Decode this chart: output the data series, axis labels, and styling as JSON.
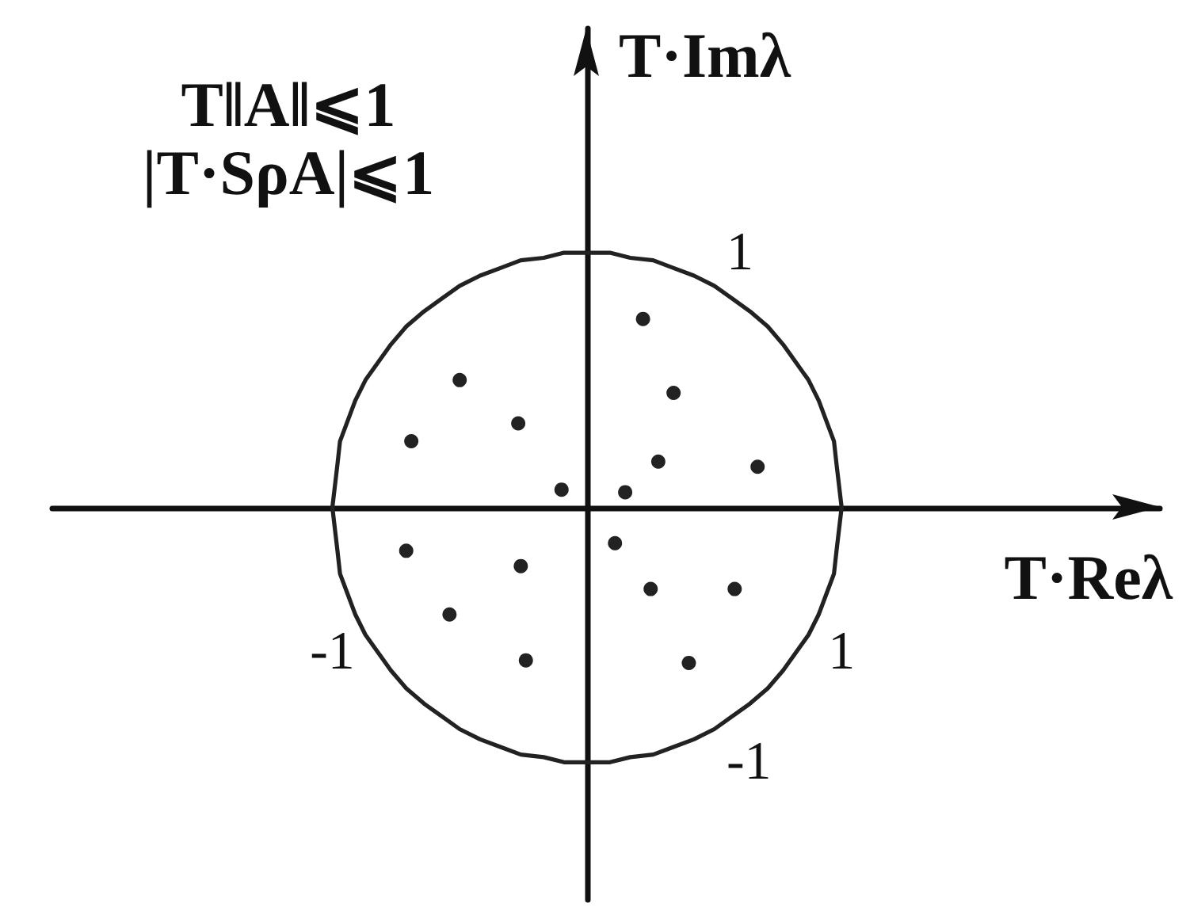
{
  "chart_data": {
    "type": "scatter",
    "xlabel": "T·Reλ",
    "ylabel": "T·Imλ",
    "annotations": [
      "T‖A‖⩽1",
      "|T·SρA|⩽1"
    ],
    "xlim": [
      -2.1,
      2.25
    ],
    "ylim": [
      -1.54,
      1.88
    ],
    "xticks": [
      -1,
      1
    ],
    "yticks": [
      -1,
      1
    ],
    "grid": false,
    "series": [
      {
        "type": "line",
        "color": "#222222",
        "marker": "none",
        "x": [
          -1,
          -0.98,
          -0.97,
          -0.94,
          -0.91,
          -0.87,
          -0.82,
          -0.77,
          -0.71,
          -0.64,
          -0.57,
          -0.5,
          -0.42,
          -0.34,
          -0.26,
          -0.17,
          -0.09,
          0,
          0.09,
          0.17,
          0.26,
          0.34,
          0.42,
          0.5,
          0.57,
          0.64,
          0.71,
          0.77,
          0.82,
          0.87,
          0.91,
          0.94,
          0.97,
          0.98,
          1
        ],
        "values": [
          0,
          0.17,
          0.26,
          0.34,
          0.42,
          0.5,
          0.57,
          0.64,
          0.71,
          0.77,
          0.82,
          0.87,
          0.91,
          0.94,
          0.97,
          0.98,
          1,
          1,
          1,
          0.98,
          0.97,
          0.94,
          0.91,
          0.87,
          0.82,
          0.77,
          0.71,
          0.64,
          0.57,
          0.5,
          0.42,
          0.34,
          0.26,
          0.17,
          0
        ]
      },
      {
        "type": "line",
        "color": "#222222",
        "marker": "none",
        "x": [
          -1,
          -0.98,
          -0.97,
          -0.94,
          -0.91,
          -0.87,
          -0.82,
          -0.77,
          -0.71,
          -0.64,
          -0.57,
          -0.5,
          -0.42,
          -0.34,
          -0.26,
          -0.17,
          -0.09,
          0,
          0.09,
          0.17,
          0.26,
          0.34,
          0.42,
          0.5,
          0.57,
          0.64,
          0.71,
          0.77,
          0.82,
          0.87,
          0.91,
          0.94,
          0.97,
          0.98,
          1
        ],
        "values": [
          0,
          -0.17,
          -0.26,
          -0.34,
          -0.42,
          -0.5,
          -0.57,
          -0.64,
          -0.71,
          -0.77,
          -0.82,
          -0.87,
          -0.91,
          -0.94,
          -0.97,
          -0.98,
          -1,
          -1,
          -1,
          -0.98,
          -0.97,
          -0.94,
          -0.91,
          -0.87,
          -0.82,
          -0.77,
          -0.71,
          -0.64,
          -0.57,
          -0.5,
          -0.42,
          -0.34,
          -0.26,
          -0.17,
          0
        ]
      },
      {
        "type": "scatter",
        "color": "#222222",
        "marker": "circle",
        "x": [
          0.22,
          -0.5,
          0.34,
          -0.27,
          -0.69,
          0.28,
          0.67,
          -0.1,
          0.15,
          0.11,
          -0.71,
          -0.26,
          0.25,
          0.58,
          -0.54,
          -0.24,
          0.4
        ],
        "values": [
          0.74,
          0.5,
          0.45,
          0.33,
          0.26,
          0.18,
          0.16,
          0.07,
          0.06,
          -0.14,
          -0.17,
          -0.23,
          -0.32,
          -0.32,
          -0.42,
          -0.6,
          -0.61
        ]
      }
    ]
  }
}
